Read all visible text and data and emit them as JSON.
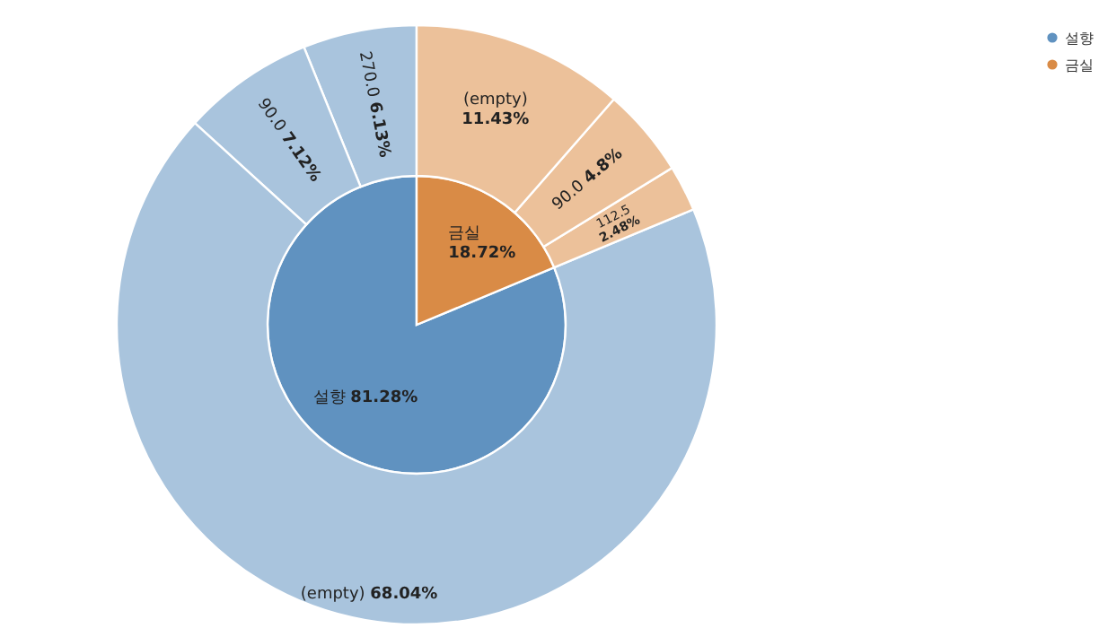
{
  "chart_data": [
    {
      "type": "pie",
      "categories": [
        "설향",
        "금실"
      ],
      "values": [
        81.28,
        18.72
      ],
      "value_labels": [
        "81.28%",
        "18.72%"
      ],
      "colors": [
        "#6092c0",
        "#d98b46"
      ],
      "legend": "top right"
    },
    {
      "type": "donut",
      "categories": [
        "270.0",
        "90.0",
        "(empty)",
        "112.5",
        "90.0",
        "(empty)"
      ],
      "values": [
        6.13,
        7.12,
        68.04,
        2.48,
        4.8,
        11.43
      ],
      "value_labels": [
        "6.13%",
        "7.12%",
        "68.04%",
        "2.48%",
        "4.8%",
        "11.43%"
      ],
      "colors": [
        "#a9c4dd",
        "#a9c4dd",
        "#a9c4dd",
        "#ecc19a",
        "#ecc19a",
        "#ecc19a"
      ]
    }
  ]
}
